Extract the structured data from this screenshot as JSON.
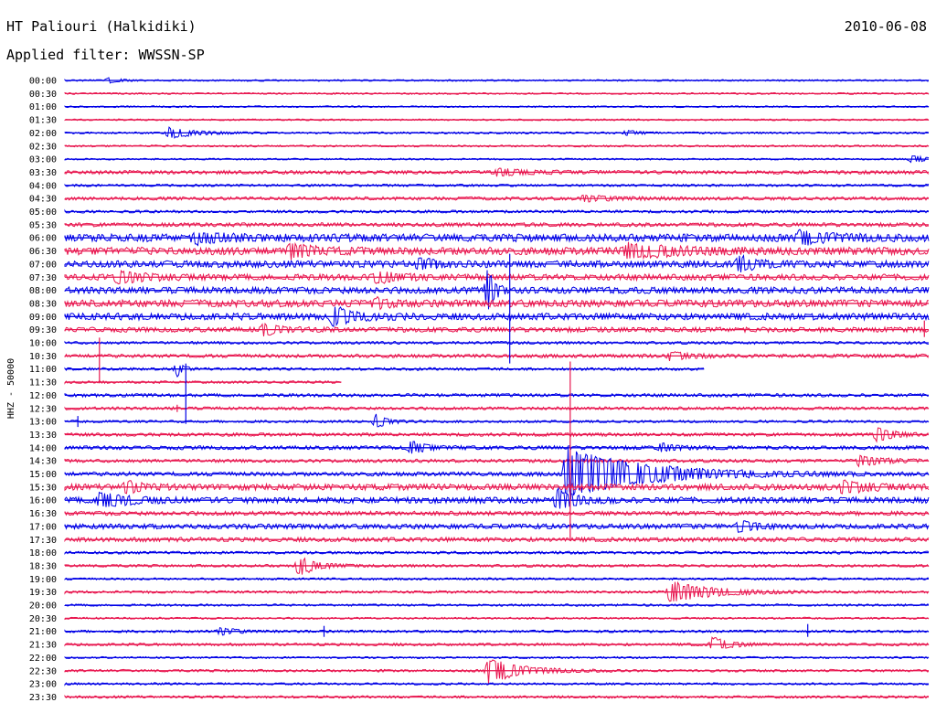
{
  "header": {
    "title": "HT Paliouri (Halkidiki)",
    "subtitle": "Applied filter: WWSSN-SP",
    "date": "2010-06-08"
  },
  "chart_data": {
    "type": "line",
    "title": "HT Paliouri (Halkidiki)",
    "subtitle": "Applied filter: WWSSN-SP",
    "ylabel": "HHZ - 50000",
    "xlabel": "",
    "rows": [
      "00:00",
      "00:30",
      "01:00",
      "01:30",
      "02:00",
      "02:30",
      "03:00",
      "03:30",
      "04:00",
      "04:30",
      "05:00",
      "05:30",
      "06:00",
      "06:30",
      "07:00",
      "07:30",
      "08:00",
      "08:30",
      "09:00",
      "09:30",
      "10:00",
      "10:30",
      "11:00",
      "11:30",
      "12:00",
      "12:30",
      "13:00",
      "13:30",
      "14:00",
      "14:30",
      "15:00",
      "15:30",
      "16:00",
      "16:30",
      "17:00",
      "17:30",
      "18:00",
      "18:30",
      "19:00",
      "19:30",
      "20:00",
      "20:30",
      "21:00",
      "21:30",
      "22:00",
      "22:30",
      "23:00",
      "23:30"
    ],
    "colors": [
      "#0000e6",
      "#e8164f"
    ],
    "row_noise": [
      0.6,
      0.6,
      0.6,
      0.6,
      0.7,
      0.7,
      0.6,
      1.3,
      0.9,
      1.2,
      1.0,
      1.4,
      2.8,
      2.8,
      2.5,
      2.2,
      2.4,
      2.6,
      2.5,
      1.8,
      1.0,
      1.3,
      1.0,
      0.9,
      1.2,
      1.1,
      0.9,
      1.2,
      1.4,
      1.2,
      1.5,
      2.2,
      2.2,
      1.5,
      1.8,
      1.6,
      1.0,
      1.0,
      0.8,
      0.9,
      0.8,
      0.7,
      0.9,
      1.0,
      0.7,
      0.9,
      0.8,
      0.9
    ],
    "events": [
      {
        "row": 0,
        "pos": 0.05,
        "amp": 3,
        "dur": 0.02
      },
      {
        "row": 4,
        "pos": 0.12,
        "amp": 6,
        "dur": 0.05
      },
      {
        "row": 4,
        "pos": 0.65,
        "amp": 3,
        "dur": 0.02
      },
      {
        "row": 6,
        "pos": 0.98,
        "amp": 4,
        "dur": 0.03
      },
      {
        "row": 7,
        "pos": 0.5,
        "amp": 4,
        "dur": 0.05
      },
      {
        "row": 9,
        "pos": 0.6,
        "amp": 3,
        "dur": 0.06
      },
      {
        "row": 12,
        "pos": 0.15,
        "amp": 5,
        "dur": 0.06
      },
      {
        "row": 12,
        "pos": 0.85,
        "amp": 6,
        "dur": 0.06
      },
      {
        "row": 13,
        "pos": 0.26,
        "amp": 8,
        "dur": 0.04
      },
      {
        "row": 13,
        "pos": 0.65,
        "amp": 7,
        "dur": 0.08
      },
      {
        "row": 14,
        "pos": 0.41,
        "amp": 6,
        "dur": 0.03
      },
      {
        "row": 14,
        "pos": 0.78,
        "amp": 8,
        "dur": 0.03
      },
      {
        "row": 15,
        "pos": 0.06,
        "amp": 6,
        "dur": 0.05
      },
      {
        "row": 15,
        "pos": 0.36,
        "amp": 6,
        "dur": 0.05
      },
      {
        "row": 16,
        "pos": 0.49,
        "amp": 30,
        "dur": 0.01
      },
      {
        "row": 17,
        "pos": 0.36,
        "amp": 5,
        "dur": 0.02
      },
      {
        "row": 18,
        "pos": 0.31,
        "amp": 10,
        "dur": 0.04
      },
      {
        "row": 19,
        "pos": 0.23,
        "amp": 6,
        "dur": 0.03
      },
      {
        "row": 21,
        "pos": 0.7,
        "amp": 4,
        "dur": 0.04
      },
      {
        "row": 22,
        "pos": 0.13,
        "amp": 8,
        "dur": 0.01
      },
      {
        "row": 26,
        "pos": 0.36,
        "amp": 8,
        "dur": 0.02
      },
      {
        "row": 27,
        "pos": 0.94,
        "amp": 8,
        "dur": 0.03
      },
      {
        "row": 28,
        "pos": 0.4,
        "amp": 7,
        "dur": 0.03
      },
      {
        "row": 28,
        "pos": 0.69,
        "amp": 4,
        "dur": 0.03
      },
      {
        "row": 29,
        "pos": 0.92,
        "amp": 6,
        "dur": 0.04
      },
      {
        "row": 30,
        "pos": 0.58,
        "amp": 28,
        "dur": 0.14
      },
      {
        "row": 31,
        "pos": 0.07,
        "amp": 6,
        "dur": 0.03
      },
      {
        "row": 31,
        "pos": 0.9,
        "amp": 6,
        "dur": 0.05
      },
      {
        "row": 32,
        "pos": 0.04,
        "amp": 8,
        "dur": 0.05
      },
      {
        "row": 32,
        "pos": 0.57,
        "amp": 12,
        "dur": 0.03
      },
      {
        "row": 34,
        "pos": 0.78,
        "amp": 6,
        "dur": 0.03
      },
      {
        "row": 37,
        "pos": 0.27,
        "amp": 12,
        "dur": 0.03
      },
      {
        "row": 39,
        "pos": 0.7,
        "amp": 12,
        "dur": 0.08
      },
      {
        "row": 42,
        "pos": 0.18,
        "amp": 4,
        "dur": 0.03
      },
      {
        "row": 43,
        "pos": 0.75,
        "amp": 8,
        "dur": 0.03
      },
      {
        "row": 45,
        "pos": 0.49,
        "amp": 14,
        "dur": 0.06
      }
    ],
    "spikes": [
      {
        "row": 14,
        "pos": 0.43,
        "up": 4,
        "down": 4
      },
      {
        "row": 16,
        "pos": 0.515,
        "up": 40,
        "down": 80
      },
      {
        "row": 19,
        "pos": 0.995,
        "up": 10,
        "down": 8
      },
      {
        "row": 21,
        "pos": 0.04,
        "up": 20,
        "down": 30
      },
      {
        "row": 22,
        "pos": 0.14,
        "up": 6,
        "down": 60
      },
      {
        "row": 25,
        "pos": 0.13,
        "up": 4,
        "down": 4
      },
      {
        "row": 26,
        "pos": 0.015,
        "up": 6,
        "down": 6
      },
      {
        "row": 27,
        "pos": 0.585,
        "up": 80,
        "down": 115
      },
      {
        "row": 42,
        "pos": 0.3,
        "up": 6,
        "down": 6
      },
      {
        "row": 42,
        "pos": 0.86,
        "up": 8,
        "down": 6
      }
    ],
    "partial_rows": [
      {
        "row": 22,
        "end": 0.74
      },
      {
        "row": 23,
        "end": 0.32
      }
    ]
  }
}
